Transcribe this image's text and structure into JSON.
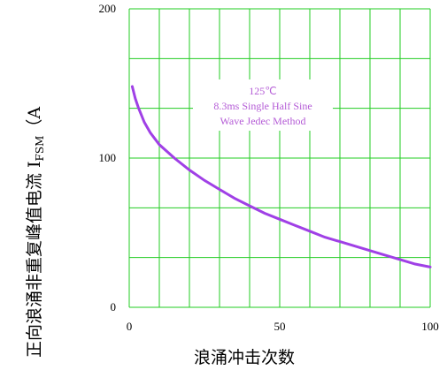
{
  "chart_data": {
    "type": "line",
    "title": "",
    "xlabel": "浪涌冲击次数",
    "ylabel_prefix": "正向浪涌非重复峰值电流 I",
    "ylabel_sub": "FSM",
    "ylabel_suffix": "（A",
    "xlim": [
      0,
      100
    ],
    "ylim": [
      0,
      200
    ],
    "x_ticks": [
      "0",
      "50",
      "100"
    ],
    "y_ticks": [
      "0",
      "100",
      "200"
    ],
    "grid": true,
    "annotation": [
      "125℃",
      "8.3ms Single Half Sine",
      "Wave Jedec Method"
    ],
    "series": [
      {
        "x": [
          1,
          2,
          3,
          5,
          7,
          10,
          15,
          20,
          25,
          30,
          35,
          40,
          45,
          50,
          55,
          60,
          65,
          70,
          75,
          80,
          85,
          90,
          95,
          100
        ],
        "y": [
          148,
          140,
          134,
          124,
          117,
          109,
          100,
          92,
          85,
          79,
          73,
          68,
          63,
          59,
          55,
          51,
          47,
          44,
          41,
          38,
          35,
          32,
          29,
          27
        ]
      }
    ]
  },
  "colors": {
    "grid": "#22cc22",
    "curve": "#a040e6",
    "annotation": "#b45bd6"
  }
}
